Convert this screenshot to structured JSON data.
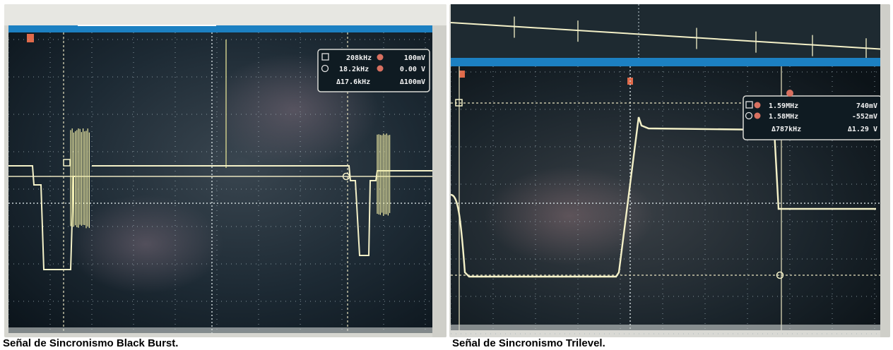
{
  "figures": [
    {
      "caption": "Señal de Sincronismo Black Burst.",
      "readout": {
        "row1_left": "208kHz",
        "row1_right": "100mV",
        "row2_left": "18.2kHz",
        "row2_right": "0.00 V",
        "row3_left": "Δ17.6kHz",
        "row3_right": "Δ100mV"
      }
    },
    {
      "caption": "Señal de Sincronismo Trilevel.",
      "readout": {
        "row1_left": "1.59MHz",
        "row1_right": "740mV",
        "row2_left": "1.58MHz",
        "row2_right": "-552mV",
        "row3_left": "Δ787kHz",
        "row3_right": "Δ1.29 V"
      }
    }
  ],
  "colors": {
    "screen_bg": "#1a2a33",
    "trace": "#f4f1c8",
    "bezel": "#d9d9d4",
    "status_bar": "#1c80c2"
  }
}
